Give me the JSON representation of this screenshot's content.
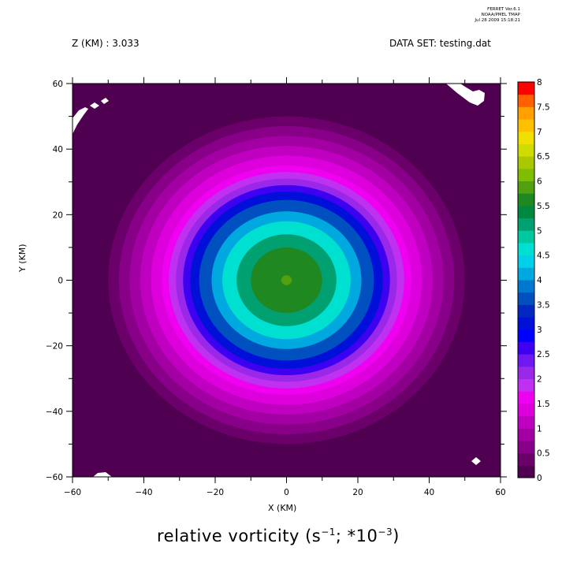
{
  "header": {
    "program": "FERRET  Ver.6.1",
    "lab": "NOAA/PMEL TMAP",
    "timestamp": "Jul 28 2009 15:18:21"
  },
  "annotations": {
    "z_level": "Z (KM) : 3.033",
    "dataset": "DATA SET: testing.dat"
  },
  "plot_title": {
    "prefix": "relative vorticity (s",
    "exp1": "−1",
    "middle": "; *10",
    "exp2": "−3",
    "suffix": ")"
  },
  "colors": {
    "levels": [
      0,
      0.25,
      0.5,
      0.75,
      1,
      1.25,
      1.5,
      1.75,
      2,
      2.25,
      2.5,
      2.75,
      3,
      3.25,
      3.5,
      3.75,
      4,
      4.25,
      4.5,
      4.75,
      5,
      5.25,
      5.5,
      5.75,
      6,
      6.25,
      6.5,
      6.75,
      7,
      7.25,
      7.5,
      7.75,
      8
    ],
    "palette": [
      "#500050",
      "#6b006b",
      "#880088",
      "#a300a3",
      "#c000c0",
      "#dd00dd",
      "#f000f0",
      "#c030f0",
      "#9a28e8",
      "#7018f0",
      "#3d00f0",
      "#0000ff",
      "#0010d8",
      "#0028c0",
      "#0050c0",
      "#0078d0",
      "#00a8e0",
      "#00d0e8",
      "#00e0d0",
      "#00c8a0",
      "#00a070",
      "#008840",
      "#208820",
      "#50a010",
      "#80bc00",
      "#a8c800",
      "#d0dc00",
      "#f0e000",
      "#ffc000",
      "#ffa000",
      "#ff6000",
      "#ff0000",
      "#d00000",
      "#a00000",
      "#600000"
    ]
  },
  "chart_data": {
    "type": "heatmap",
    "plot_kind": "filled contour",
    "title": "relative vorticity (s^-1; *10^-3)",
    "xlabel": "X (KM)",
    "ylabel": "Y (KM)",
    "xlim": [
      -60,
      60
    ],
    "ylim": [
      -60,
      60
    ],
    "x_ticks": [
      -60,
      -40,
      -20,
      0,
      20,
      40,
      60
    ],
    "y_ticks": [
      -60,
      -40,
      -20,
      0,
      20,
      40,
      60
    ],
    "colorbar": {
      "range": [
        0,
        8
      ],
      "labels": [
        "0",
        "0.5",
        "1",
        "1.5",
        "2",
        "2.5",
        "3",
        "3.5",
        "4",
        "4.5",
        "5",
        "5.5",
        "6",
        "6.5",
        "7",
        "7.5",
        "8"
      ],
      "placement": "right"
    },
    "field": {
      "description": "axisymmetric vortex centred at (0, 0)",
      "center": [
        0,
        0
      ],
      "radius_km_by_value": [
        {
          "value": 0.25,
          "radius": 50
        },
        {
          "value": 0.5,
          "radius": 47
        },
        {
          "value": 0.75,
          "radius": 44
        },
        {
          "value": 1.0,
          "radius": 41
        },
        {
          "value": 1.25,
          "radius": 38
        },
        {
          "value": 1.5,
          "radius": 35
        },
        {
          "value": 1.75,
          "radius": 33
        },
        {
          "value": 2.0,
          "radius": 31
        },
        {
          "value": 2.5,
          "radius": 29
        },
        {
          "value": 3.0,
          "radius": 27
        },
        {
          "value": 3.5,
          "radius": 24.5
        },
        {
          "value": 4.0,
          "radius": 21
        },
        {
          "value": 4.5,
          "radius": 18
        },
        {
          "value": 5.0,
          "radius": 14
        },
        {
          "value": 5.5,
          "radius": 10
        },
        {
          "value": 5.75,
          "radius": 1.5
        }
      ],
      "missing_regions": [
        "upper-left corner",
        "upper-right corner",
        "bottom-left edge",
        "near (53, -55)"
      ]
    }
  }
}
